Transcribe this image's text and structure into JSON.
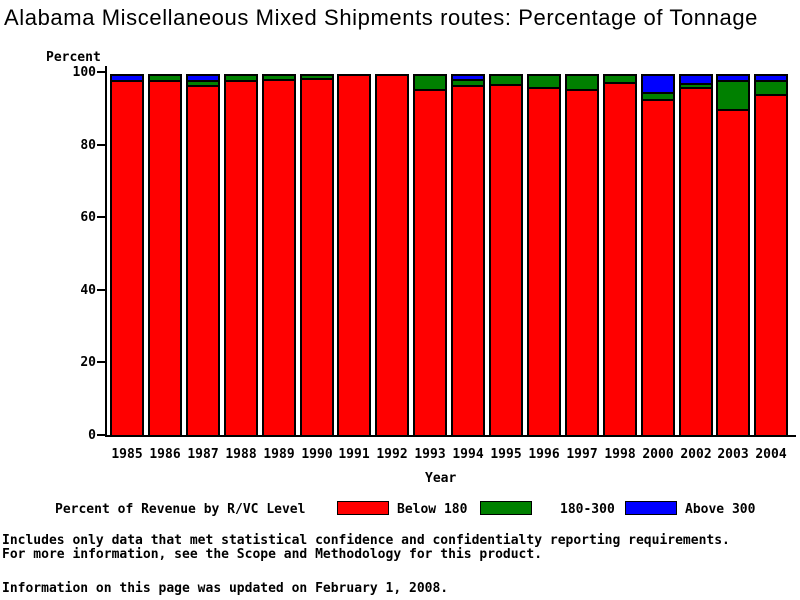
{
  "title": "Alabama Miscellaneous Mixed Shipments routes: Percentage of Tonnage",
  "chart_data": {
    "type": "bar",
    "stacked": true,
    "title": "Alabama Miscellaneous Mixed Shipments routes: Percentage of Tonnage",
    "ylabel": "Percent",
    "xlabel": "Year",
    "ylim": [
      0,
      100
    ],
    "yticks": [
      0,
      20,
      40,
      60,
      80,
      100
    ],
    "grid": false,
    "legend_title": "Percent of Revenue by R/VC Level",
    "legend_position": "bottom",
    "categories": [
      "1985",
      "1986",
      "1987",
      "1988",
      "1989",
      "1990",
      "1991",
      "1992",
      "1993",
      "1994",
      "1995",
      "1996",
      "1997",
      "1998",
      "2000",
      "2002",
      "2003",
      "2004"
    ],
    "series": [
      {
        "name": "Below 180",
        "color": "#ff0000",
        "values": [
          99.0,
          99.0,
          97.6,
          99.0,
          99.3,
          99.5,
          100.0,
          100.0,
          96.4,
          97.6,
          97.8,
          97.0,
          96.4,
          98.4,
          93.7,
          96.9,
          91.0,
          95.0
        ]
      },
      {
        "name": "180-300",
        "color": "#008000",
        "values": [
          0.0,
          1.0,
          1.4,
          1.0,
          0.7,
          0.5,
          0.0,
          0.0,
          3.6,
          1.7,
          2.2,
          3.0,
          3.6,
          1.6,
          1.9,
          1.1,
          8.0,
          4.0
        ]
      },
      {
        "name": "Above 300",
        "color": "#0000ff",
        "values": [
          1.0,
          0.0,
          1.0,
          0.0,
          0.0,
          0.0,
          0.0,
          0.0,
          0.0,
          0.7,
          0.0,
          0.0,
          0.0,
          0.0,
          4.4,
          2.0,
          1.0,
          1.0
        ]
      }
    ]
  },
  "footer": {
    "lines": [
      "Includes only data that met statistical confidence and confidentialty reporting requirements.",
      "For more information, see the Scope and Methodology for this product.",
      "Information on this page was updated on February 1, 2008."
    ]
  }
}
